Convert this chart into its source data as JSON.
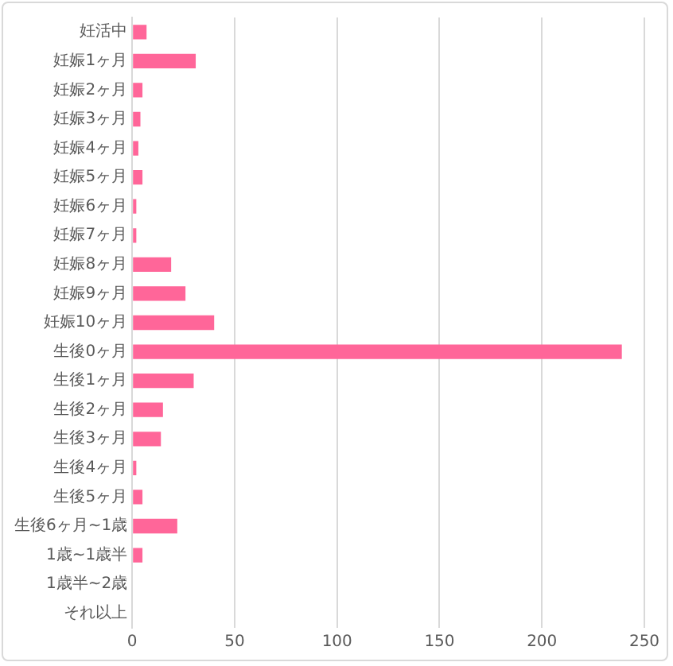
{
  "chart_data": {
    "type": "bar",
    "orientation": "horizontal",
    "categories": [
      "妊活中",
      "妊娠1ヶ月",
      "妊娠2ヶ月",
      "妊娠3ヶ月",
      "妊娠4ヶ月",
      "妊娠5ヶ月",
      "妊娠6ヶ月",
      "妊娠7ヶ月",
      "妊娠8ヶ月",
      "妊娠9ヶ月",
      "妊娠10ヶ月",
      "生後0ヶ月",
      "生後1ヶ月",
      "生後2ヶ月",
      "生後3ヶ月",
      "生後4ヶ月",
      "生後5ヶ月",
      "生後6ヶ月~1歳",
      "1歳~1歳半",
      "1歳半~2歳",
      "それ以上"
    ],
    "values": [
      7,
      31,
      5,
      4,
      3,
      5,
      2,
      2,
      19,
      26,
      40,
      239,
      30,
      15,
      14,
      2,
      5,
      22,
      5,
      0,
      0
    ],
    "color": "#ff6699",
    "xlim": [
      0,
      250
    ],
    "xticks": [
      0,
      50,
      100,
      150,
      200,
      250
    ],
    "grid": "x"
  }
}
